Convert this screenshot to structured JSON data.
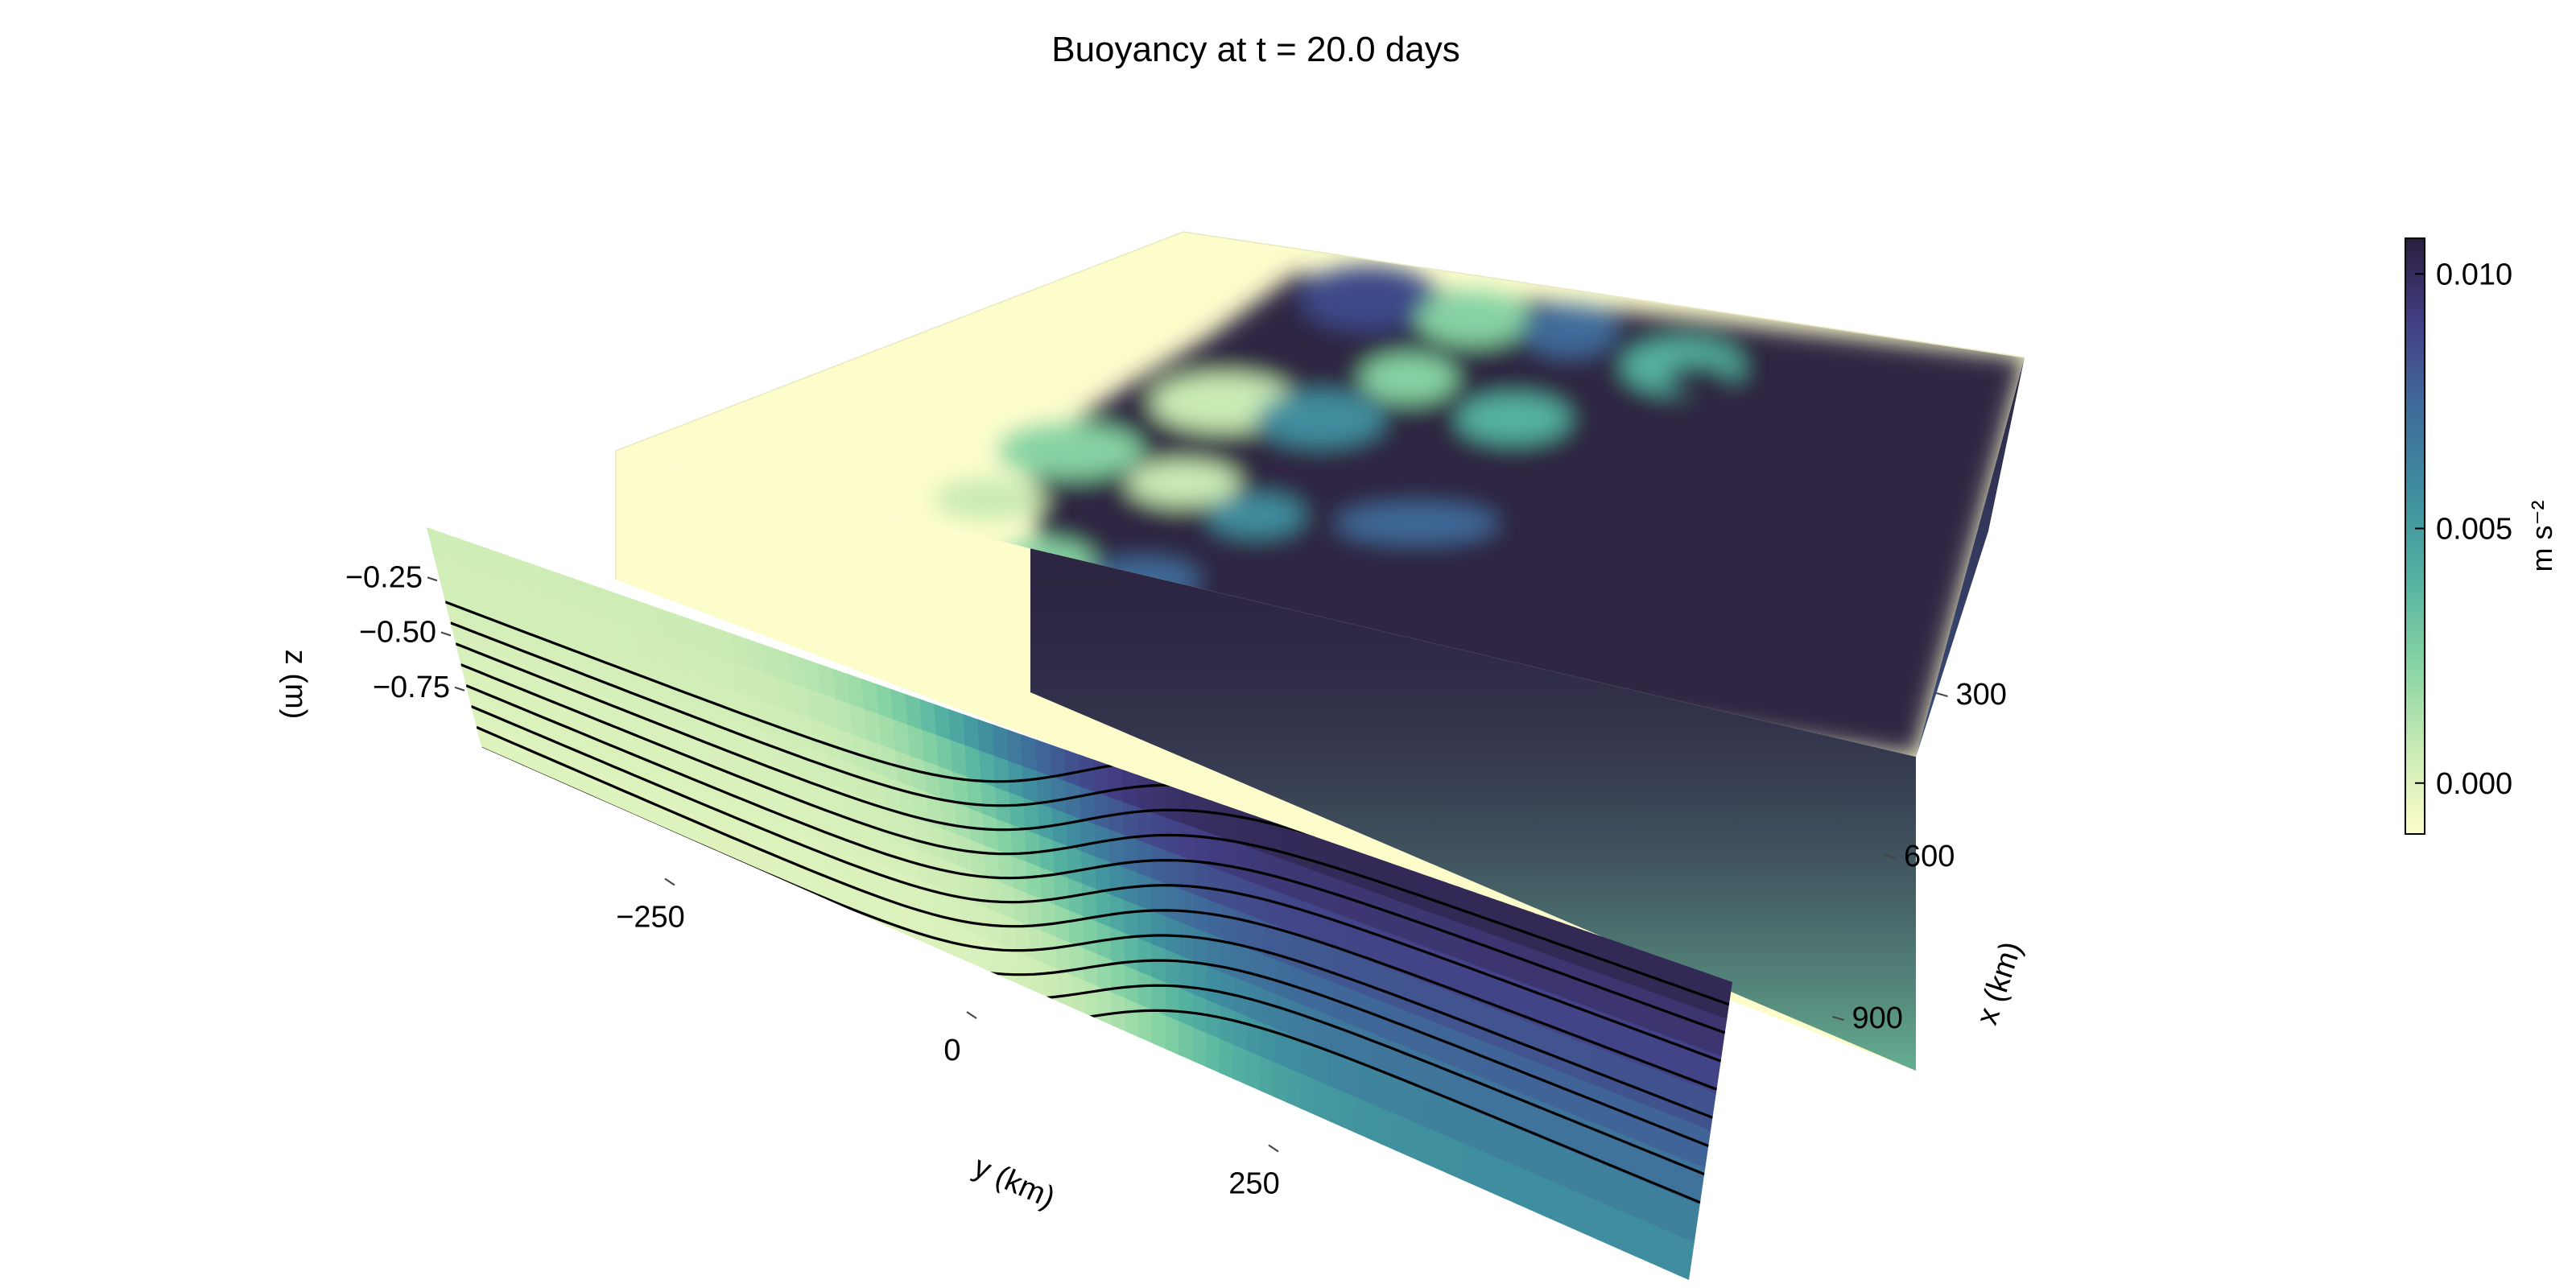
{
  "chart_data": {
    "type": "heatmap",
    "title": "Buoyancy at t = 20.0 days",
    "x_axis": {
      "label": "x (km)",
      "ticks": [
        300,
        600,
        900
      ],
      "range": [
        0,
        1000
      ]
    },
    "y_axis": {
      "label": "y (km)",
      "ticks": [
        -250,
        0,
        250
      ],
      "range": [
        -500,
        500
      ]
    },
    "z_axis": {
      "label": "z (m)",
      "ticks": [
        -0.25,
        -0.5,
        -0.75
      ],
      "tick_labels": [
        "−0.25",
        "−0.50",
        "−0.75"
      ],
      "range": [
        -1.0,
        0.0
      ]
    },
    "colorbar": {
      "label": "m s⁻²",
      "ticks": [
        0.0,
        0.005,
        0.01
      ],
      "tick_labels": [
        "0.000",
        "0.005",
        "0.010"
      ],
      "range": [
        -0.001,
        0.0107
      ],
      "colormap": [
        "#fdfdcc",
        "#c9ebb4",
        "#86d3a3",
        "#54b2a1",
        "#3f8e9f",
        "#3f6b9a",
        "#433f85",
        "#2b1e3e"
      ]
    },
    "views": [
      "3D volume (top surface and x-face)",
      "y-z cross-section with buoyancy contours"
    ],
    "contour_count": 11,
    "front_center_y_km": 0,
    "front_width_km": 100
  }
}
